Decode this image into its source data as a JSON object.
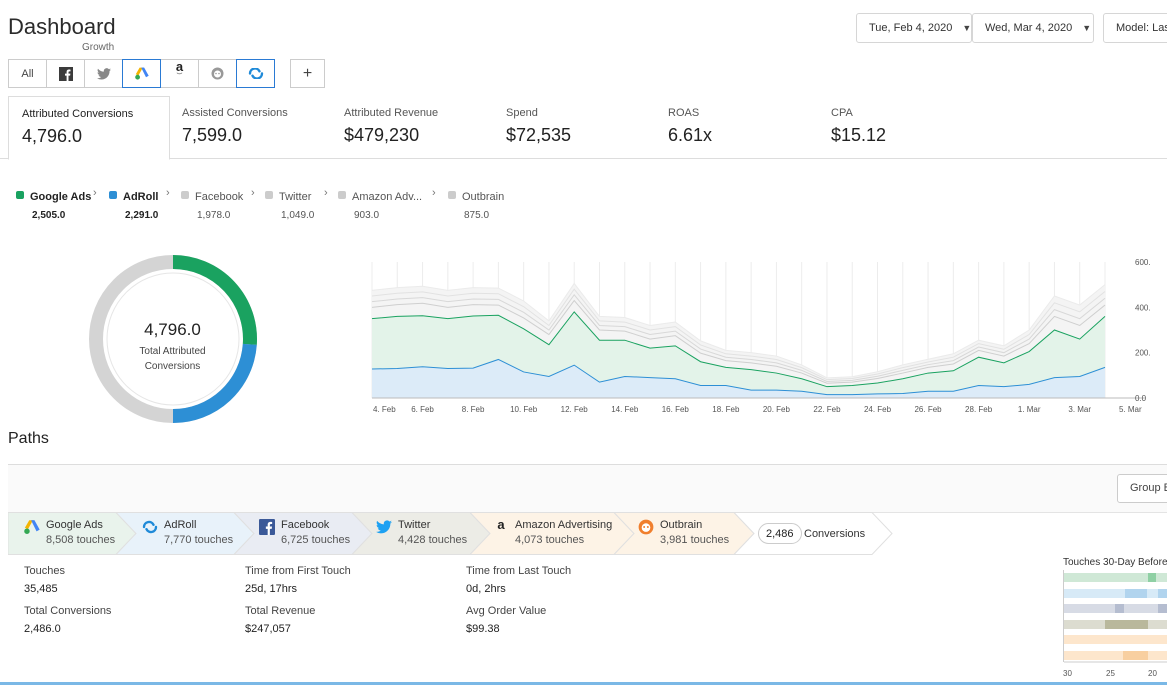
{
  "header": {
    "title": "Dashboard",
    "subtitle": "Growth"
  },
  "date_from": "Tue, Feb 4, 2020",
  "date_to": "Wed, Mar 4, 2020",
  "model": "Model: Las",
  "channel_tabs": {
    "all_label": "All",
    "add_label": "+"
  },
  "metrics": [
    {
      "label": "Attributed Conversions",
      "value": "4,796.0"
    },
    {
      "label": "Assisted Conversions",
      "value": "7,599.0"
    },
    {
      "label": "Attributed Revenue",
      "value": "$479,230"
    },
    {
      "label": "Spend",
      "value": "$72,535"
    },
    {
      "label": "ROAS",
      "value": "6.61x"
    },
    {
      "label": "CPA",
      "value": "$15.12"
    }
  ],
  "legend": [
    {
      "name": "Google Ads",
      "value": "2,505.0",
      "color": "#1aa260"
    },
    {
      "name": "AdRoll",
      "value": "2,291.0",
      "color": "#2d8fd5"
    },
    {
      "name": "Facebook",
      "value": "1,978.0",
      "color": "#cccccc"
    },
    {
      "name": "Twitter",
      "value": "1,049.0",
      "color": "#cccccc"
    },
    {
      "name": "Amazon Adv...",
      "value": "903.0",
      "color": "#cccccc"
    },
    {
      "name": "Outbrain",
      "value": "875.0",
      "color": "#cccccc"
    }
  ],
  "donut": {
    "total": "4,796.0",
    "label_line1": "Total Attributed",
    "label_line2": "Conversions"
  },
  "chart_data": {
    "type": "area",
    "x": [
      "4. Feb",
      "5. Feb",
      "6. Feb",
      "7. Feb",
      "8. Feb",
      "9. Feb",
      "10. Feb",
      "11. Feb",
      "12. Feb",
      "13. Feb",
      "14. Feb",
      "15. Feb",
      "16. Feb",
      "17. Feb",
      "18. Feb",
      "19. Feb",
      "20. Feb",
      "21. Feb",
      "22. Feb",
      "23. Feb",
      "24. Feb",
      "25. Feb",
      "26. Feb",
      "27. Feb",
      "28. Feb",
      "29. Feb",
      "1. Mar",
      "2. Mar",
      "3. Mar",
      "4. Mar"
    ],
    "x_ticks": [
      "4. Feb",
      "6. Feb",
      "8. Feb",
      "10. Feb",
      "12. Feb",
      "14. Feb",
      "16. Feb",
      "18. Feb",
      "20. Feb",
      "22. Feb",
      "24. Feb",
      "26. Feb",
      "28. Feb",
      "1. Mar",
      "3. Mar",
      "5. Mar"
    ],
    "y_ticks": [
      "600.",
      "400.",
      "200.",
      "0.0"
    ],
    "ylim": [
      0,
      600
    ],
    "stacked": true,
    "series": [
      {
        "name": "AdRoll",
        "color": "#2d8fd5",
        "values": [
          128,
          130,
          138,
          130,
          132,
          170,
          115,
          95,
          145,
          70,
          95,
          90,
          85,
          55,
          55,
          35,
          35,
          30,
          15,
          15,
          18,
          20,
          30,
          30,
          55,
          50,
          60,
          90,
          95,
          135
        ]
      },
      {
        "name": "Google Ads",
        "color": "#1aa260",
        "values": [
          222,
          230,
          225,
          220,
          230,
          195,
          190,
          140,
          235,
          185,
          160,
          130,
          145,
          105,
          80,
          90,
          75,
          55,
          35,
          40,
          48,
          65,
          80,
          90,
          125,
          105,
          145,
          210,
          165,
          225
        ]
      },
      {
        "name": "Facebook",
        "color": "#cfcfcf",
        "values": [
          50,
          52,
          55,
          50,
          50,
          45,
          48,
          45,
          50,
          45,
          40,
          40,
          45,
          38,
          30,
          30,
          30,
          25,
          15,
          15,
          20,
          25,
          25,
          30,
          30,
          30,
          35,
          60,
          60,
          50
        ]
      },
      {
        "name": "Twitter",
        "color": "#d8d8d8",
        "values": [
          25,
          25,
          25,
          25,
          25,
          25,
          25,
          20,
          25,
          20,
          20,
          20,
          20,
          18,
          15,
          15,
          15,
          12,
          8,
          8,
          10,
          12,
          12,
          15,
          15,
          15,
          20,
          30,
          30,
          30
        ]
      },
      {
        "name": "Amazon Advertising",
        "color": "#e2e2e2",
        "values": [
          25,
          25,
          25,
          25,
          25,
          25,
          25,
          20,
          25,
          20,
          20,
          20,
          20,
          18,
          15,
          15,
          15,
          12,
          8,
          8,
          10,
          12,
          12,
          15,
          15,
          15,
          20,
          30,
          30,
          30
        ]
      },
      {
        "name": "Outbrain",
        "color": "#ebebeb",
        "values": [
          25,
          25,
          25,
          25,
          25,
          25,
          25,
          20,
          25,
          20,
          20,
          20,
          20,
          18,
          15,
          15,
          15,
          12,
          8,
          8,
          10,
          12,
          12,
          15,
          15,
          15,
          20,
          30,
          30,
          30
        ]
      }
    ],
    "grid": true
  },
  "paths": {
    "title": "Paths",
    "group_by": "Group B",
    "steps": [
      {
        "name": "Google Ads",
        "touches": "8,508 touches",
        "bg": "#e9f3ec"
      },
      {
        "name": "AdRoll",
        "touches": "7,770 touches",
        "bg": "#e8f2fa"
      },
      {
        "name": "Facebook",
        "touches": "6,725 touches",
        "bg": "#e9ecf3"
      },
      {
        "name": "Twitter",
        "touches": "4,428 touches",
        "bg": "#ecece6"
      },
      {
        "name": "Amazon Advertising",
        "touches": "4,073 touches",
        "bg": "#fdf3e6"
      },
      {
        "name": "Outbrain",
        "touches": "3,981 touches",
        "bg": "#fdf3e6"
      }
    ],
    "conversions_count": "2,486",
    "conversions_label": "Conversions",
    "stats": [
      {
        "label": "Touches",
        "value": "35,485"
      },
      {
        "label": "Time from First Touch",
        "value": "25d, 17hrs"
      },
      {
        "label": "Time from Last Touch",
        "value": "0d, 2hrs"
      },
      {
        "label": "Total Conversions",
        "value": "2,486.0"
      },
      {
        "label": "Total Revenue",
        "value": "$247,057"
      },
      {
        "label": "Avg Order Value",
        "value": "$99.38"
      }
    ],
    "heatmap_title": "Touches 30-Day Before",
    "heatmap_ticks": [
      "30",
      "25",
      "20"
    ]
  }
}
